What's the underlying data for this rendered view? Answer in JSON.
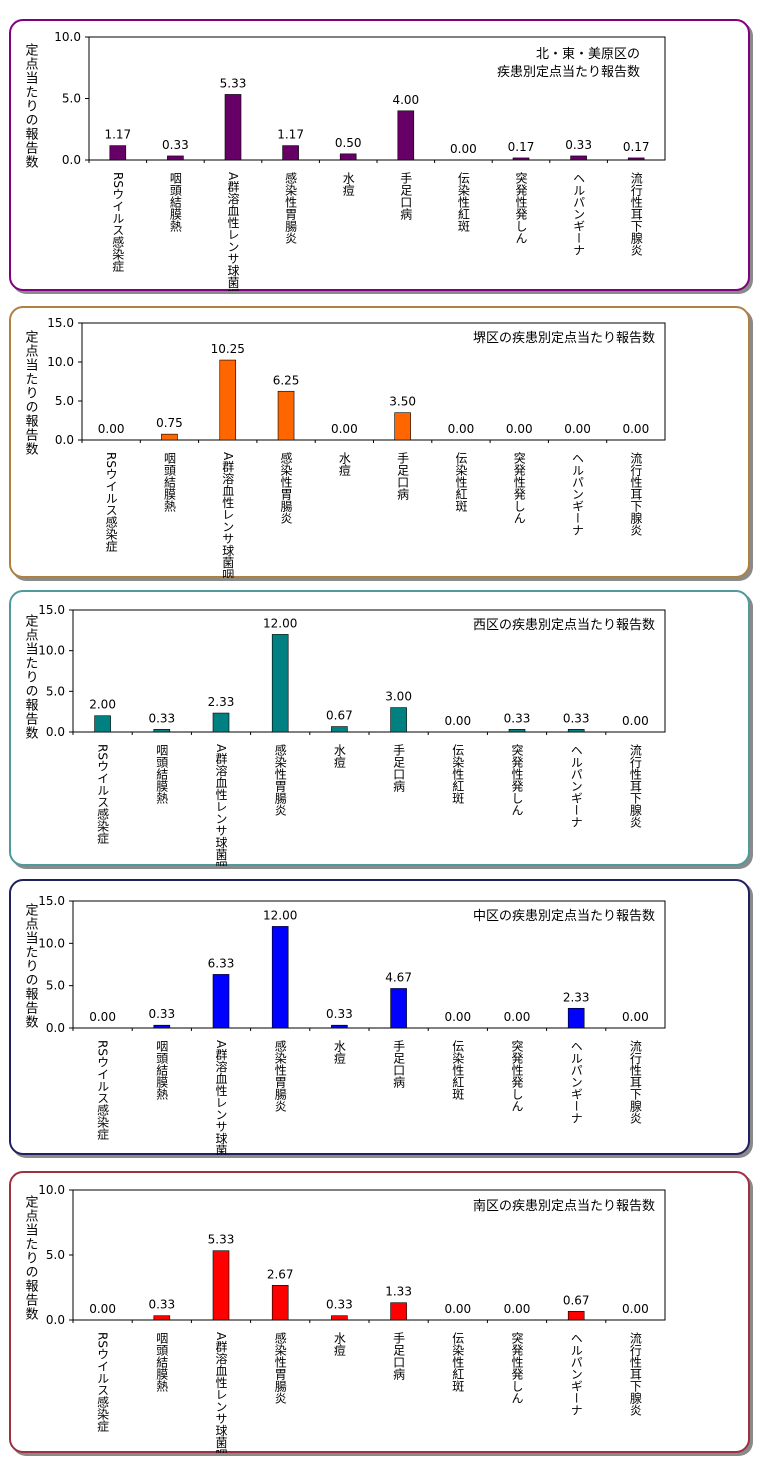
{
  "colors": {
    "panel_borders": [
      "#800080",
      "#b08040",
      "#4f9a9a",
      "#202060",
      "#a03040"
    ],
    "bars": [
      "#660066",
      "#ff6600",
      "#008080",
      "#0000ff",
      "#ff0000"
    ]
  },
  "chart_data": [
    {
      "type": "bar",
      "title": "北・東・美原区の\n疾患別定点当たり報告数",
      "ylabel": "定点当たりの報告数",
      "ylim": [
        0,
        10
      ],
      "yticks": [
        "10.0",
        "5.0",
        "0.0"
      ],
      "categories": [
        "RSウイルス感染症",
        "咽頭結膜熱",
        "A群溶血性レンサ球菌咽頭炎",
        "感染性胃腸炎",
        "水痘",
        "手足口病",
        "伝染性紅斑",
        "突発性発しん",
        "ヘルパンギーナ",
        "流行性耳下腺炎"
      ],
      "values": [
        1.17,
        0.33,
        5.33,
        1.17,
        0.5,
        4.0,
        0.0,
        0.17,
        0.33,
        0.17
      ],
      "value_labels": [
        "1.17",
        "0.33",
        "5.33",
        "1.17",
        "0.50",
        "4.00",
        "0.00",
        "0.17",
        "0.33",
        "0.17"
      ],
      "bar_color": "#660066",
      "grid": false
    },
    {
      "type": "bar",
      "title": "堺区の疾患別定点当たり報告数",
      "ylabel": "定点当たりの報告数",
      "ylim": [
        0,
        15
      ],
      "yticks": [
        "15.0",
        "10.0",
        "5.0",
        "0.0"
      ],
      "categories": [
        "RSウイルス感染症",
        "咽頭結膜熱",
        "A群溶血性レンサ球菌咽頭炎",
        "感染性胃腸炎",
        "水痘",
        "手足口病",
        "伝染性紅斑",
        "突発性発しん",
        "ヘルパンギーナ",
        "流行性耳下腺炎"
      ],
      "values": [
        0.0,
        0.75,
        10.25,
        6.25,
        0.0,
        3.5,
        0.0,
        0.0,
        0.0,
        0.0
      ],
      "value_labels": [
        "0.00",
        "0.75",
        "10.25",
        "6.25",
        "0.00",
        "3.50",
        "0.00",
        "0.00",
        "0.00",
        "0.00"
      ],
      "bar_color": "#ff6600",
      "grid": false
    },
    {
      "type": "bar",
      "title": "西区の疾患別定点当たり報告数",
      "ylabel": "定点当たりの報告数",
      "ylim": [
        0,
        15
      ],
      "yticks": [
        "15.0",
        "10.0",
        "5.0",
        "0.0"
      ],
      "categories": [
        "RSウイルス感染症",
        "咽頭結膜熱",
        "A群溶血性レンサ球菌咽頭炎",
        "感染性胃腸炎",
        "水痘",
        "手足口病",
        "伝染性紅斑",
        "突発性発しん",
        "ヘルパンギーナ",
        "流行性耳下腺炎"
      ],
      "values": [
        2.0,
        0.33,
        2.33,
        12.0,
        0.67,
        3.0,
        0.0,
        0.33,
        0.33,
        0.0
      ],
      "value_labels": [
        "2.00",
        "0.33",
        "2.33",
        "12.00",
        "0.67",
        "3.00",
        "0.00",
        "0.33",
        "0.33",
        "0.00"
      ],
      "bar_color": "#008080",
      "grid": false
    },
    {
      "type": "bar",
      "title": "中区の疾患別定点当たり報告数",
      "ylabel": "定点当たりの報告数",
      "ylim": [
        0,
        15
      ],
      "yticks": [
        "15.0",
        "10.0",
        "5.0",
        "0.0"
      ],
      "categories": [
        "RSウイルス感染症",
        "咽頭結膜熱",
        "A群溶血性レンサ球菌咽頭炎",
        "感染性胃腸炎",
        "水痘",
        "手足口病",
        "伝染性紅斑",
        "突発性発しん",
        "ヘルパンギーナ",
        "流行性耳下腺炎"
      ],
      "values": [
        0.0,
        0.33,
        6.33,
        12.0,
        0.33,
        4.67,
        0.0,
        0.0,
        2.33,
        0.0
      ],
      "value_labels": [
        "0.00",
        "0.33",
        "6.33",
        "12.00",
        "0.33",
        "4.67",
        "0.00",
        "0.00",
        "2.33",
        "0.00"
      ],
      "bar_color": "#0000ff",
      "grid": false
    },
    {
      "type": "bar",
      "title": "南区の疾患別定点当たり報告数",
      "ylabel": "定点当たりの報告数",
      "ylim": [
        0,
        10
      ],
      "yticks": [
        "10.0",
        "5.0",
        "0.0"
      ],
      "categories": [
        "RSウイルス感染症",
        "咽頭結膜熱",
        "A群溶血性レンサ球菌咽頭炎",
        "感染性胃腸炎",
        "水痘",
        "手足口病",
        "伝染性紅斑",
        "突発性発しん",
        "ヘルパンギーナ",
        "流行性耳下腺炎"
      ],
      "values": [
        0.0,
        0.33,
        5.33,
        2.67,
        0.33,
        1.33,
        0.0,
        0.0,
        0.67,
        0.0
      ],
      "value_labels": [
        "0.00",
        "0.33",
        "5.33",
        "2.67",
        "0.33",
        "1.33",
        "0.00",
        "0.00",
        "0.67",
        "0.00"
      ],
      "bar_color": "#ff0000",
      "grid": false
    }
  ]
}
